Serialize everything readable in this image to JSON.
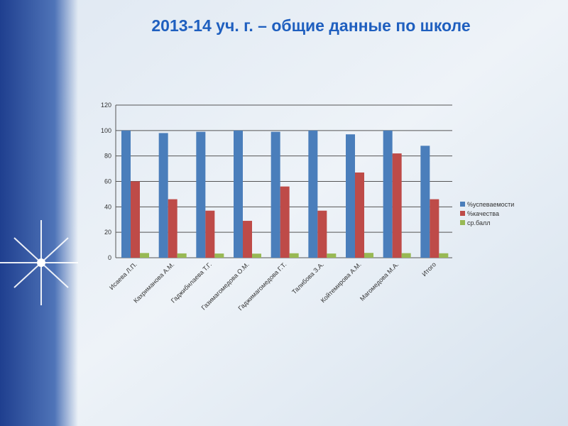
{
  "chart_data": {
    "type": "bar",
    "title": "2013-14 уч. г. – общие данные по школе",
    "categories": [
      "Исаева Л.П.",
      "Кахриманова А.М.",
      "Гаджибилаева Т.Г.",
      "Газимагомедова О.М.",
      "Гаджимагомедова Г.Т.",
      "Талибова З.А.",
      "Койтемирова А.М.",
      "Магомедова М.А.",
      "Итого"
    ],
    "series": [
      {
        "name": "%успеваемости",
        "color": "#4a7ebb",
        "values": [
          100,
          98,
          99,
          100,
          99,
          100,
          97,
          100,
          88
        ]
      },
      {
        "name": "%качества",
        "color": "#be4b48",
        "values": [
          60,
          46,
          37,
          29,
          56,
          37,
          67,
          82,
          46
        ]
      },
      {
        "name": "ср.балл",
        "color": "#98b954",
        "values": [
          3.7,
          3.4,
          3.3,
          3.2,
          3.5,
          3.3,
          3.8,
          3.6,
          3.5
        ]
      }
    ],
    "ylim": [
      0,
      120
    ],
    "yticks": [
      0,
      20,
      40,
      60,
      80,
      100,
      120
    ],
    "grid": true,
    "legend": "right"
  }
}
